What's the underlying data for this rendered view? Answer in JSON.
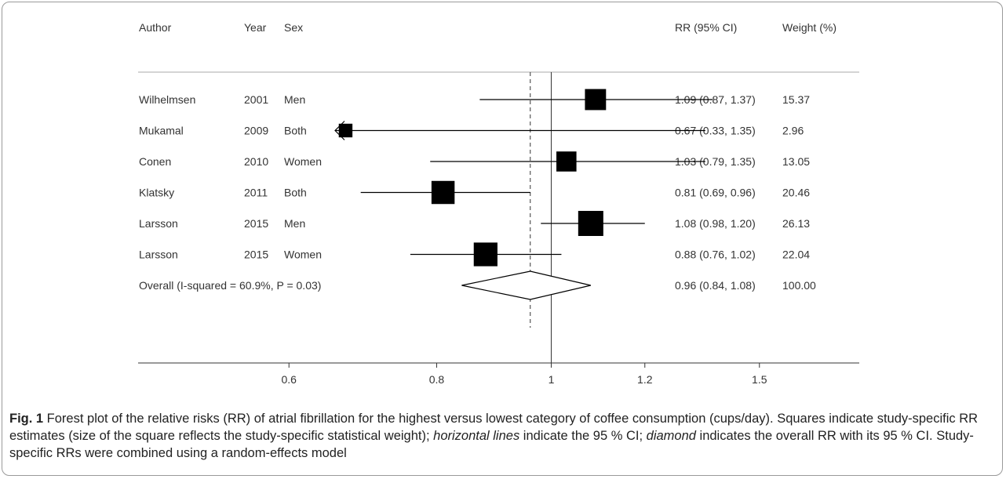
{
  "chart_data": {
    "type": "forest",
    "headers": {
      "author": "Author",
      "year": "Year",
      "sex": "Sex",
      "rr": "RR (95% CI)",
      "weight": "Weight (%)"
    },
    "studies": [
      {
        "author": "Wilhelmsen",
        "year": "2001",
        "sex": "Men",
        "rr": 1.09,
        "lo": 0.87,
        "hi": 1.37,
        "rr_text": "1.09 (0.87, 1.37)",
        "weight": "15.37",
        "arrow_left": false
      },
      {
        "author": "Mukamal",
        "year": "2009",
        "sex": "Both",
        "rr": 0.67,
        "lo": 0.33,
        "hi": 1.35,
        "rr_text": "0.67 (0.33, 1.35)",
        "weight": "2.96",
        "arrow_left": true
      },
      {
        "author": "Conen",
        "year": "2010",
        "sex": "Women",
        "rr": 1.03,
        "lo": 0.79,
        "hi": 1.35,
        "rr_text": "1.03 (0.79, 1.35)",
        "weight": "13.05",
        "arrow_left": false
      },
      {
        "author": "Klatsky",
        "year": "2011",
        "sex": "Both",
        "rr": 0.81,
        "lo": 0.69,
        "hi": 0.96,
        "rr_text": "0.81 (0.69, 0.96)",
        "weight": "20.46",
        "arrow_left": false
      },
      {
        "author": "Larsson",
        "year": "2015",
        "sex": "Men",
        "rr": 1.08,
        "lo": 0.98,
        "hi": 1.2,
        "rr_text": "1.08 (0.98, 1.20)",
        "weight": "26.13",
        "arrow_left": false
      },
      {
        "author": "Larsson",
        "year": "2015",
        "sex": "Women",
        "rr": 0.88,
        "lo": 0.76,
        "hi": 1.02,
        "rr_text": "0.88 (0.76, 1.02)",
        "weight": "22.04",
        "arrow_left": false
      }
    ],
    "overall": {
      "label": "Overall  (I-squared = 60.9%, P = 0.03)",
      "rr": 0.96,
      "lo": 0.84,
      "hi": 1.08,
      "rr_text": "0.96 (0.84, 1.08)",
      "weight": "100.00"
    },
    "x_ticks": [
      {
        "value": 0.6,
        "label": "0.6"
      },
      {
        "value": 0.8,
        "label": "0.8"
      },
      {
        "value": 1,
        "label": "1"
      },
      {
        "value": 1.2,
        "label": "1.2"
      },
      {
        "value": 1.5,
        "label": "1.5"
      }
    ],
    "x_scale": "log",
    "x_domain": [
      0.45,
      1.6
    ],
    "null_line": 1,
    "overall_line": 0.96,
    "colors": {
      "marker": "#000000",
      "line": "#000000",
      "text": "#333333"
    }
  },
  "caption": {
    "fig_label": "Fig. 1",
    "text_1": " Forest plot of the relative risks (RR) of atrial fibrillation for the highest versus lowest category of coffee consumption (cups/day). Squares indicate study-specific RR estimates (size of the square reflects the study-specific statistical weight); ",
    "em_1": "horizontal lines",
    "text_2": " indicate the 95 % CI; ",
    "em_2": "diamond",
    "text_3": " indicates the overall RR with its 95 % CI. Study-specific RRs were combined using a random-effects model"
  }
}
